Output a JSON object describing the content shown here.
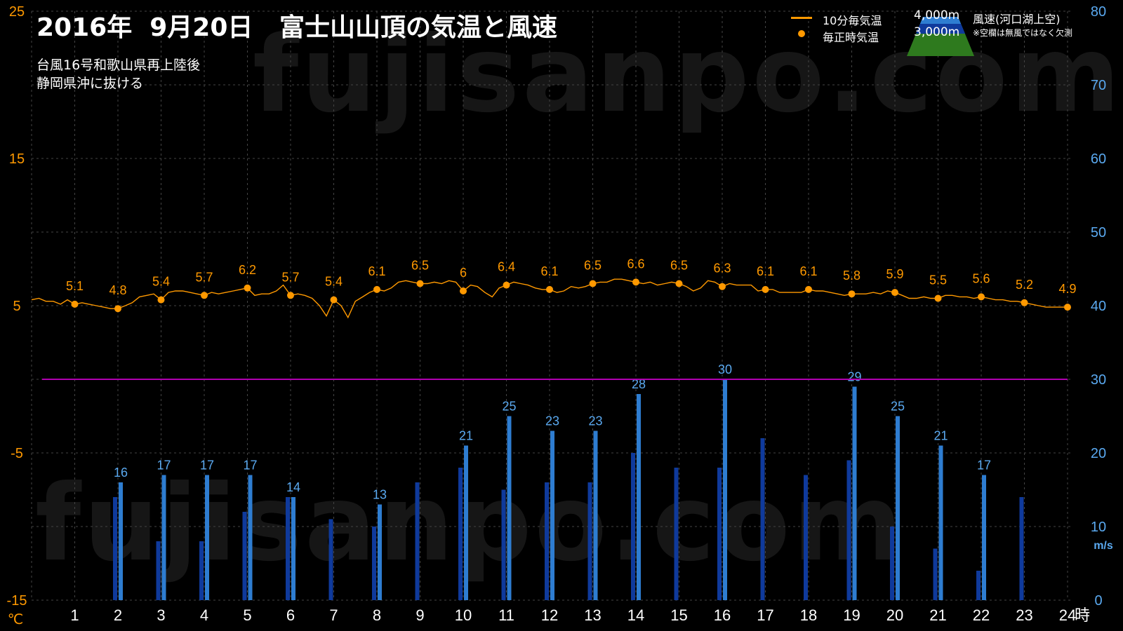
{
  "title": "2016年  9月20日   富士山山頂の気温と風速",
  "notes": [
    "台風16号和歌山県再上陸後",
    "静岡県沖に抜ける"
  ],
  "legend": {
    "temp_line": "10分毎気温",
    "temp_dot": "毎正時気温",
    "alt_4000": "4,000m",
    "alt_3000": "3,000m",
    "wind_label": "風速(河口湖上空)",
    "wind_note": "※空欄は無風ではなく欠測"
  },
  "watermark": "fujisanpo.com",
  "colors": {
    "temperature": "#FF9900",
    "wind_4000": "#2E7DD1",
    "wind_3000": "#0F3A9C",
    "threshold": "#B000B0",
    "grid": "#444444",
    "left_axis": "#FF9900",
    "right_axis": "#5AA9F0"
  },
  "chart_data": {
    "type": "line",
    "x_unit": "時",
    "left_axis": {
      "unit": "℃",
      "range": [
        -15,
        25
      ],
      "ticks": [
        25,
        15,
        5,
        -5,
        -15
      ]
    },
    "right_axis": {
      "unit": "m/s",
      "range": [
        0,
        80
      ],
      "ticks": [
        80,
        70,
        60,
        50,
        40,
        30,
        20,
        10,
        0
      ]
    },
    "x_ticks": [
      1,
      2,
      3,
      4,
      5,
      6,
      7,
      8,
      9,
      10,
      11,
      12,
      13,
      14,
      15,
      16,
      17,
      18,
      19,
      20,
      21,
      22,
      23,
      24
    ],
    "grid": true,
    "threshold_wind": 30,
    "hourly_temperature": [
      {
        "hour": 1,
        "value": 5.1
      },
      {
        "hour": 2,
        "value": 4.8
      },
      {
        "hour": 3,
        "value": 5.4
      },
      {
        "hour": 4,
        "value": 5.7
      },
      {
        "hour": 5,
        "value": 6.2
      },
      {
        "hour": 6,
        "value": 5.7
      },
      {
        "hour": 7,
        "value": 5.4
      },
      {
        "hour": 8,
        "value": 6.1
      },
      {
        "hour": 9,
        "value": 6.5
      },
      {
        "hour": 10,
        "value": 6
      },
      {
        "hour": 11,
        "value": 6.4
      },
      {
        "hour": 12,
        "value": 6.1
      },
      {
        "hour": 13,
        "value": 6.5
      },
      {
        "hour": 14,
        "value": 6.6
      },
      {
        "hour": 15,
        "value": 6.5
      },
      {
        "hour": 16,
        "value": 6.3
      },
      {
        "hour": 17,
        "value": 6.1
      },
      {
        "hour": 18,
        "value": 6.1
      },
      {
        "hour": 19,
        "value": 5.8
      },
      {
        "hour": 20,
        "value": 5.9
      },
      {
        "hour": 21,
        "value": 5.5
      },
      {
        "hour": 22,
        "value": 5.6
      },
      {
        "hour": 23,
        "value": 5.2
      },
      {
        "hour": 24,
        "value": 4.9
      }
    ],
    "temperature_10min": [
      [
        0.0,
        5.4
      ],
      [
        0.17,
        5.5
      ],
      [
        0.33,
        5.3
      ],
      [
        0.5,
        5.3
      ],
      [
        0.67,
        5.1
      ],
      [
        0.83,
        5.4
      ],
      [
        1.0,
        5.1
      ],
      [
        1.17,
        5.2
      ],
      [
        1.33,
        5.1
      ],
      [
        1.5,
        5.0
      ],
      [
        1.67,
        4.9
      ],
      [
        1.83,
        4.8
      ],
      [
        2.0,
        4.8
      ],
      [
        2.17,
        5.0
      ],
      [
        2.33,
        5.2
      ],
      [
        2.5,
        5.6
      ],
      [
        2.67,
        5.7
      ],
      [
        2.83,
        5.8
      ],
      [
        3.0,
        5.4
      ],
      [
        3.17,
        5.9
      ],
      [
        3.33,
        6.0
      ],
      [
        3.5,
        6.0
      ],
      [
        3.67,
        5.9
      ],
      [
        3.83,
        5.8
      ],
      [
        4.0,
        5.7
      ],
      [
        4.17,
        5.9
      ],
      [
        4.33,
        5.8
      ],
      [
        4.5,
        5.9
      ],
      [
        4.67,
        6.0
      ],
      [
        4.83,
        6.1
      ],
      [
        5.0,
        6.2
      ],
      [
        5.17,
        5.7
      ],
      [
        5.33,
        5.8
      ],
      [
        5.5,
        5.8
      ],
      [
        5.67,
        6.0
      ],
      [
        5.83,
        6.4
      ],
      [
        6.0,
        5.7
      ],
      [
        6.17,
        5.8
      ],
      [
        6.33,
        5.7
      ],
      [
        6.5,
        5.5
      ],
      [
        6.67,
        5.0
      ],
      [
        6.83,
        4.3
      ],
      [
        7.0,
        5.4
      ],
      [
        7.17,
        5.0
      ],
      [
        7.33,
        4.2
      ],
      [
        7.5,
        5.3
      ],
      [
        7.67,
        5.6
      ],
      [
        7.83,
        5.9
      ],
      [
        8.0,
        6.1
      ],
      [
        8.17,
        6.0
      ],
      [
        8.33,
        6.2
      ],
      [
        8.5,
        6.6
      ],
      [
        8.67,
        6.7
      ],
      [
        8.83,
        6.6
      ],
      [
        9.0,
        6.5
      ],
      [
        9.17,
        6.5
      ],
      [
        9.33,
        6.6
      ],
      [
        9.5,
        6.5
      ],
      [
        9.67,
        6.7
      ],
      [
        9.83,
        6.6
      ],
      [
        10.0,
        6.0
      ],
      [
        10.17,
        6.4
      ],
      [
        10.33,
        6.3
      ],
      [
        10.5,
        5.9
      ],
      [
        10.67,
        5.6
      ],
      [
        10.83,
        6.2
      ],
      [
        11.0,
        6.4
      ],
      [
        11.17,
        6.6
      ],
      [
        11.33,
        6.5
      ],
      [
        11.5,
        6.4
      ],
      [
        11.67,
        6.2
      ],
      [
        11.83,
        6.1
      ],
      [
        12.0,
        6.1
      ],
      [
        12.17,
        5.9
      ],
      [
        12.33,
        6.0
      ],
      [
        12.5,
        6.3
      ],
      [
        12.67,
        6.2
      ],
      [
        12.83,
        6.3
      ],
      [
        13.0,
        6.5
      ],
      [
        13.17,
        6.6
      ],
      [
        13.33,
        6.6
      ],
      [
        13.5,
        6.8
      ],
      [
        13.67,
        6.8
      ],
      [
        13.83,
        6.7
      ],
      [
        14.0,
        6.6
      ],
      [
        14.17,
        6.5
      ],
      [
        14.33,
        6.6
      ],
      [
        14.5,
        6.4
      ],
      [
        14.67,
        6.5
      ],
      [
        14.83,
        6.6
      ],
      [
        15.0,
        6.5
      ],
      [
        15.17,
        6.3
      ],
      [
        15.33,
        6.0
      ],
      [
        15.5,
        6.2
      ],
      [
        15.67,
        6.7
      ],
      [
        15.83,
        6.6
      ],
      [
        16.0,
        6.3
      ],
      [
        16.17,
        6.5
      ],
      [
        16.33,
        6.4
      ],
      [
        16.5,
        6.4
      ],
      [
        16.67,
        6.4
      ],
      [
        16.83,
        6.0
      ],
      [
        17.0,
        6.1
      ],
      [
        17.17,
        6.1
      ],
      [
        17.33,
        5.9
      ],
      [
        17.5,
        5.9
      ],
      [
        17.67,
        5.9
      ],
      [
        17.83,
        5.9
      ],
      [
        18.0,
        6.1
      ],
      [
        18.17,
        6.0
      ],
      [
        18.33,
        6.0
      ],
      [
        18.5,
        5.9
      ],
      [
        18.67,
        5.8
      ],
      [
        18.83,
        5.7
      ],
      [
        19.0,
        5.8
      ],
      [
        19.17,
        5.8
      ],
      [
        19.33,
        5.8
      ],
      [
        19.5,
        5.9
      ],
      [
        19.67,
        5.8
      ],
      [
        19.83,
        6.0
      ],
      [
        20.0,
        5.9
      ],
      [
        20.17,
        5.7
      ],
      [
        20.33,
        5.5
      ],
      [
        20.5,
        5.5
      ],
      [
        20.67,
        5.6
      ],
      [
        20.83,
        5.5
      ],
      [
        21.0,
        5.5
      ],
      [
        21.17,
        5.7
      ],
      [
        21.33,
        5.7
      ],
      [
        21.5,
        5.6
      ],
      [
        21.67,
        5.6
      ],
      [
        21.83,
        5.5
      ],
      [
        22.0,
        5.6
      ],
      [
        22.17,
        5.5
      ],
      [
        22.33,
        5.4
      ],
      [
        22.5,
        5.4
      ],
      [
        22.67,
        5.3
      ],
      [
        22.83,
        5.3
      ],
      [
        23.0,
        5.2
      ],
      [
        23.17,
        5.1
      ],
      [
        23.33,
        5.0
      ],
      [
        23.5,
        4.9
      ],
      [
        23.67,
        4.9
      ],
      [
        24.0,
        4.9
      ]
    ],
    "wind_series": [
      {
        "name": "4,000m",
        "values": [
          null,
          16,
          17,
          17,
          17,
          14,
          null,
          13,
          null,
          21,
          25,
          23,
          23,
          28,
          null,
          30,
          null,
          null,
          29,
          25,
          21,
          17,
          null,
          null
        ],
        "labels": [
          "",
          "16",
          "17",
          "17",
          "17",
          "14",
          "",
          "13",
          "",
          "21",
          "25",
          "23",
          "23",
          "28",
          "",
          "30",
          "",
          "",
          "29",
          "25",
          "21",
          "17",
          "",
          ""
        ]
      },
      {
        "name": "3,000m",
        "values": [
          null,
          14,
          8,
          8,
          12,
          14,
          11,
          10,
          16,
          18,
          15,
          16,
          16,
          20,
          18,
          18,
          22,
          17,
          19,
          10,
          7,
          4,
          14,
          null
        ]
      }
    ]
  }
}
